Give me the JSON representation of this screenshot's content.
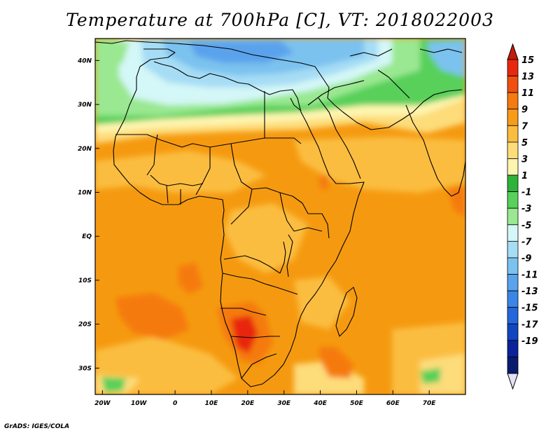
{
  "title": "Temperature at 700hPa [C], VT: 2018022003",
  "credit": "GrADS: IGES/COLA",
  "axes": {
    "lon_labels": [
      "20W",
      "10W",
      "0",
      "10E",
      "20E",
      "30E",
      "40E",
      "50E",
      "60E",
      "70E"
    ],
    "lon_values": [
      -20,
      -10,
      0,
      10,
      20,
      30,
      40,
      50,
      60,
      70
    ],
    "lat_labels": [
      "40N",
      "30N",
      "20N",
      "10N",
      "EQ",
      "10S",
      "20S",
      "30S"
    ],
    "lat_values": [
      40,
      30,
      20,
      10,
      0,
      -10,
      -20,
      -30
    ],
    "lon_range": [
      -22,
      80
    ],
    "lat_range": [
      -36,
      45
    ]
  },
  "colorbar": {
    "labels": [
      "15",
      "13",
      "11",
      "9",
      "7",
      "5",
      "3",
      "1",
      "-1",
      "-3",
      "-5",
      "-7",
      "-9",
      "-11",
      "-13",
      "-15",
      "-17",
      "-19"
    ],
    "colors": [
      "#e8280e",
      "#f0500f",
      "#f57a10",
      "#f89c18",
      "#fbbd40",
      "#fddc7a",
      "#fef5b0",
      "#2eb33a",
      "#59d05a",
      "#9ae891",
      "#d4f7f7",
      "#a6ddf5",
      "#7bc2ef",
      "#5aa3ec",
      "#3a86e6",
      "#2467dc",
      "#1246c0",
      "#0a239a",
      "#081b6e"
    ],
    "top_color": "#c31a09",
    "bottom_color": "#e6e0f8"
  }
}
